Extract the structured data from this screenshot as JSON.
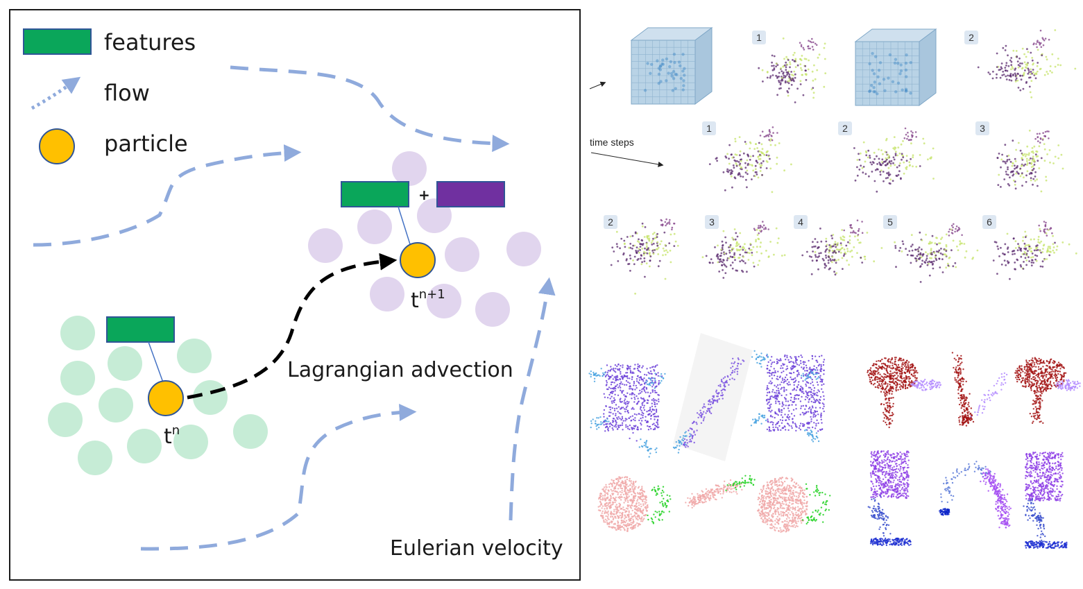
{
  "diagram": {
    "legend": {
      "features": "features",
      "flow": "flow",
      "particle": "particle"
    },
    "labels": {
      "t_n_base": "t",
      "t_n_sup": "n",
      "t_n1_base": "t",
      "t_n1_sup": "n+1",
      "plus": "+",
      "lagrangian": "Lagrangian advection",
      "eulerian": "Eulerian velocity"
    },
    "colors": {
      "feature_green": "#0aa65a",
      "feature_purple": "#7030a0",
      "particle": "#ffc000",
      "flow": "#8faadc",
      "green_cloud": "#c6ecd6",
      "purple_cloud": "#e1d5ee"
    }
  },
  "panels": {
    "time_steps_label": "time steps",
    "row1_badges": [
      "1",
      "2"
    ],
    "row2_badges": [
      "1",
      "2",
      "3"
    ],
    "row3_badges": [
      "2",
      "3",
      "4",
      "5",
      "6"
    ]
  }
}
